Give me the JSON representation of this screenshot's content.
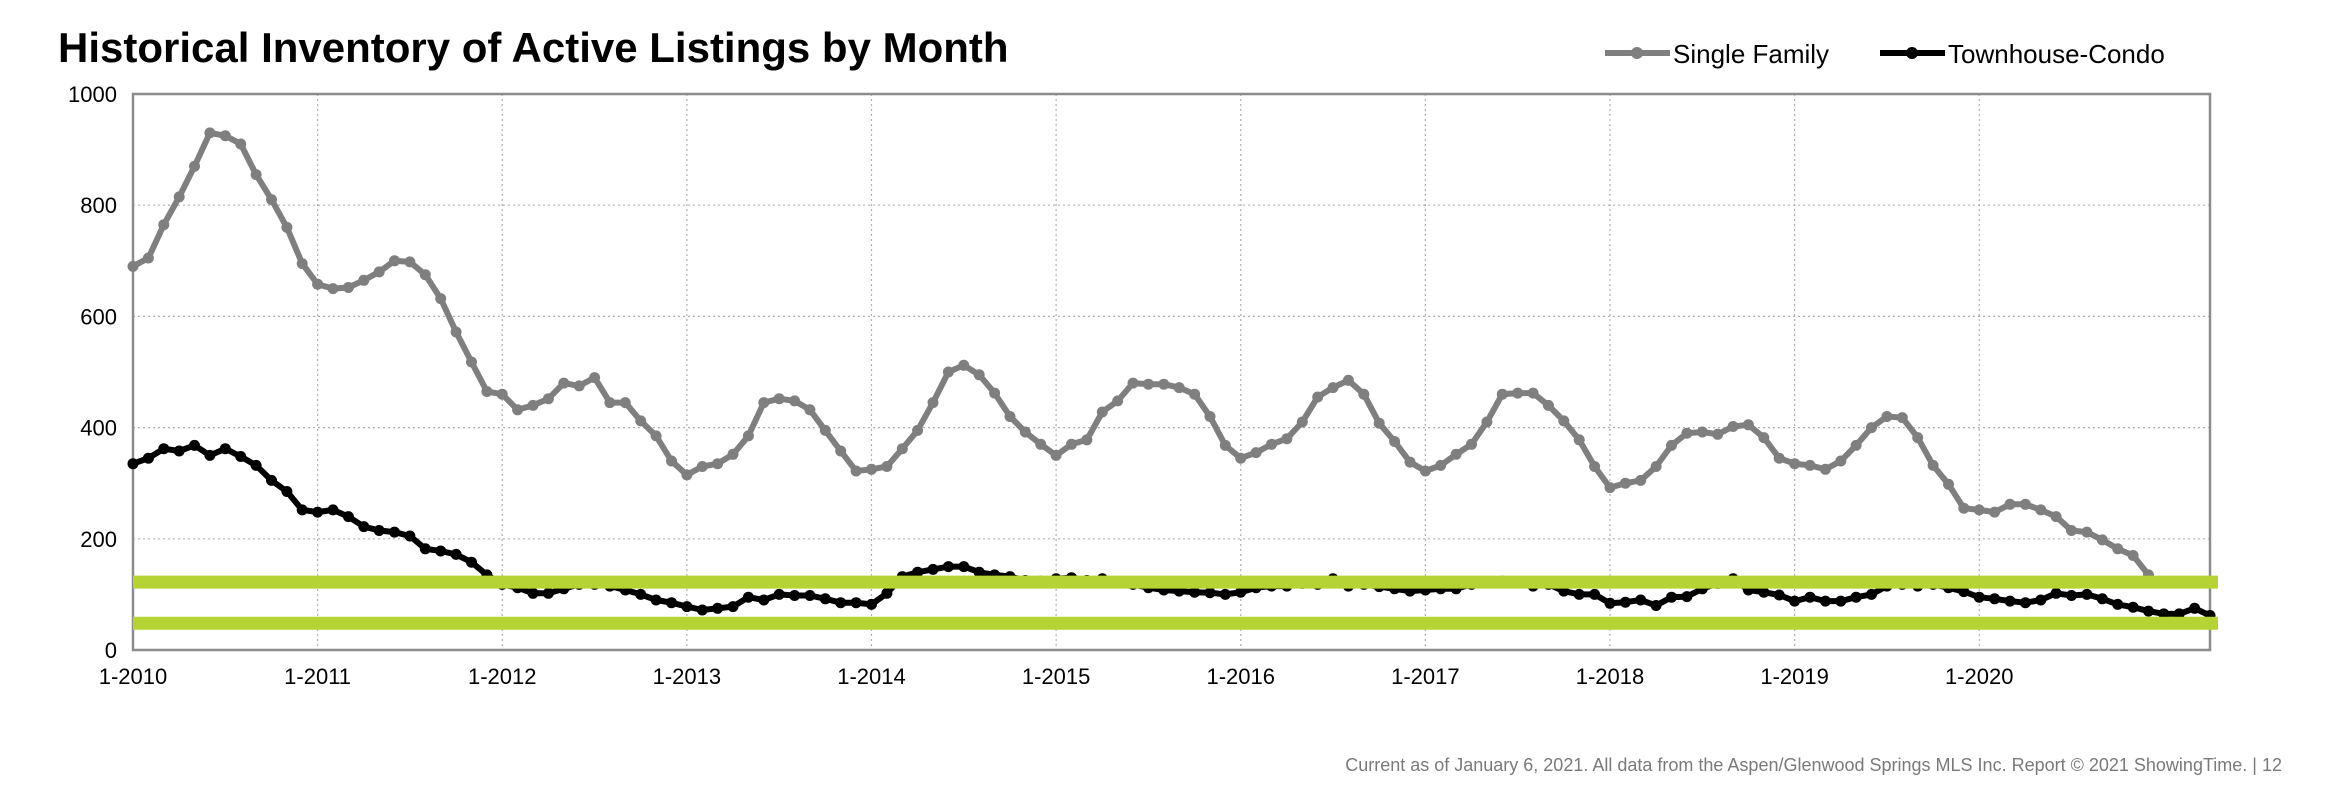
{
  "chart_data": {
    "type": "line",
    "title": "Historical Inventory of Active Listings by Month",
    "x_ticks": [
      "1-2010",
      "1-2011",
      "1-2012",
      "1-2013",
      "1-2014",
      "1-2015",
      "1-2016",
      "1-2017",
      "1-2018",
      "1-2019",
      "1-2020"
    ],
    "y_ticks": [
      "0",
      "200",
      "400",
      "600",
      "800",
      "1000"
    ],
    "ylim": [
      0,
      1000
    ],
    "x_start": "2010-01",
    "x_end": "2020-12",
    "grid": true,
    "legend_position": "top-right",
    "series": [
      {
        "name": "Single Family",
        "color": "#7f7f7f",
        "values": [
          690,
          705,
          765,
          815,
          870,
          930,
          925,
          910,
          855,
          810,
          760,
          695,
          658,
          650,
          652,
          665,
          680,
          700,
          698,
          675,
          632,
          572,
          518,
          465,
          460,
          432,
          440,
          452,
          480,
          475,
          490,
          445,
          445,
          412,
          385,
          340,
          315,
          330,
          335,
          352,
          385,
          445,
          452,
          448,
          432,
          395,
          358,
          322,
          325,
          330,
          362,
          395,
          445,
          500,
          512,
          495,
          462,
          420,
          392,
          370,
          350,
          370,
          378,
          428,
          448,
          480,
          478,
          478,
          472,
          460,
          420,
          368,
          345,
          355,
          370,
          380,
          410,
          455,
          472,
          485,
          460,
          408,
          375,
          338,
          322,
          332,
          352,
          370,
          410,
          460,
          462,
          462,
          440,
          412,
          378,
          330,
          292,
          300,
          305,
          330,
          368,
          390,
          392,
          388,
          402,
          405,
          382,
          345,
          335,
          332,
          325,
          340,
          368,
          400,
          420,
          418,
          382,
          332,
          298,
          255,
          252,
          248,
          262,
          262,
          252,
          240,
          215,
          212,
          198,
          182,
          170,
          135
        ]
      },
      {
        "name": "Townhouse-Condo",
        "color": "#000000",
        "values": [
          335,
          345,
          362,
          358,
          368,
          350,
          362,
          348,
          332,
          305,
          285,
          252,
          248,
          252,
          240,
          222,
          215,
          212,
          205,
          182,
          178,
          172,
          158,
          135,
          118,
          112,
          102,
          102,
          110,
          118,
          118,
          115,
          108,
          100,
          90,
          85,
          78,
          72,
          75,
          78,
          95,
          90,
          100,
          98,
          98,
          92,
          85,
          85,
          82,
          102,
          132,
          140,
          145,
          150,
          150,
          140,
          135,
          132,
          125,
          124,
          128,
          130,
          125,
          128,
          122,
          118,
          112,
          108,
          106,
          104,
          103,
          100,
          104,
          112,
          115,
          115,
          120,
          118,
          128,
          115,
          118,
          114,
          110,
          106,
          108,
          110,
          110,
          118,
          122,
          124,
          122,
          115,
          118,
          106,
          100,
          100,
          84,
          86,
          90,
          80,
          95,
          96,
          110,
          120,
          128,
          108,
          104,
          99,
          88,
          95,
          88,
          88,
          95,
          100,
          115,
          118,
          115,
          118,
          112,
          105,
          95,
          92,
          88,
          85,
          90,
          102,
          98,
          100,
          92,
          82,
          77,
          70,
          65,
          65,
          75,
          62
        ]
      }
    ],
    "reference_lines": [
      {
        "value": 122,
        "color": "#b5d334"
      },
      {
        "value": 48,
        "color": "#b5d334"
      }
    ]
  },
  "footer": {
    "text": "Current as of January 6, 2021.  All data from the Aspen/Glenwood Springs MLS Inc. Report © 2021 ShowingTime.  |  12"
  }
}
